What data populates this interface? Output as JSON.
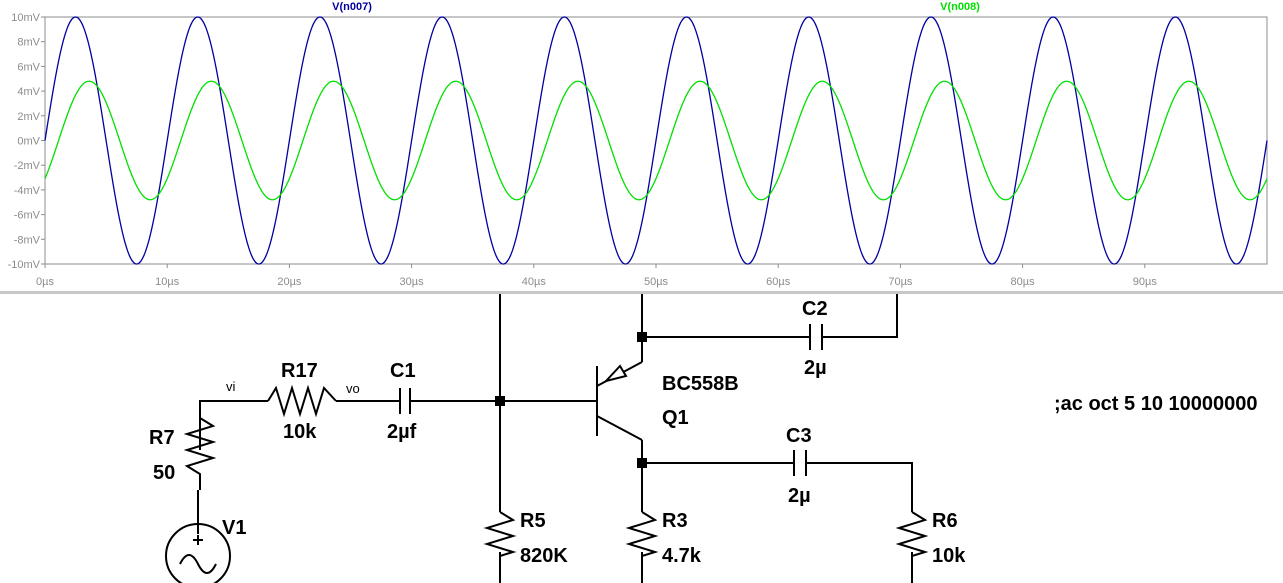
{
  "plot": {
    "traces": [
      {
        "name": "V(n007)",
        "color": "#0000a0"
      },
      {
        "name": "V(n008)",
        "color": "#00e000"
      }
    ],
    "x_ticks": [
      "0µs",
      "10µs",
      "20µs",
      "30µs",
      "40µs",
      "50µs",
      "60µs",
      "70µs",
      "80µs",
      "90µs"
    ],
    "y_ticks": [
      "10mV",
      "8mV",
      "6mV",
      "4mV",
      "2mV",
      "0mV",
      "-2mV",
      "-4mV",
      "-6mV",
      "-8mV",
      "-10mV"
    ]
  },
  "chart_data": {
    "type": "line",
    "xlabel": "",
    "ylabel": "",
    "x_unit": "µs",
    "y_unit": "mV",
    "xlim": [
      0,
      100
    ],
    "ylim": [
      -10,
      10
    ],
    "grid": false,
    "series": [
      {
        "name": "V(n007)",
        "color": "#0000a0",
        "kind": "sine",
        "amplitude": 10,
        "period": 10,
        "phase_deg": 0
      },
      {
        "name": "V(n008)",
        "color": "#00e000",
        "kind": "sine",
        "amplitude": 4.8,
        "period": 10,
        "phase_deg": -40
      }
    ]
  },
  "schematic": {
    "components": {
      "r7": {
        "name": "R7",
        "value": "50"
      },
      "r17": {
        "name": "R17",
        "value": "10k"
      },
      "c1": {
        "name": "C1",
        "value": "2µf"
      },
      "c2": {
        "name": "C2",
        "value": "2µ"
      },
      "c3": {
        "name": "C3",
        "value": "2µ"
      },
      "r5": {
        "name": "R5",
        "value": "820K"
      },
      "r3": {
        "name": "R3",
        "value": "4.7k"
      },
      "r6": {
        "name": "R6",
        "value": "10k"
      },
      "v1": {
        "name": "V1"
      },
      "q1": {
        "model": "BC558B",
        "name": "Q1"
      }
    },
    "nets": {
      "vi": "vi",
      "vo": "vo"
    },
    "directive": ";ac oct 5 10 10000000"
  }
}
